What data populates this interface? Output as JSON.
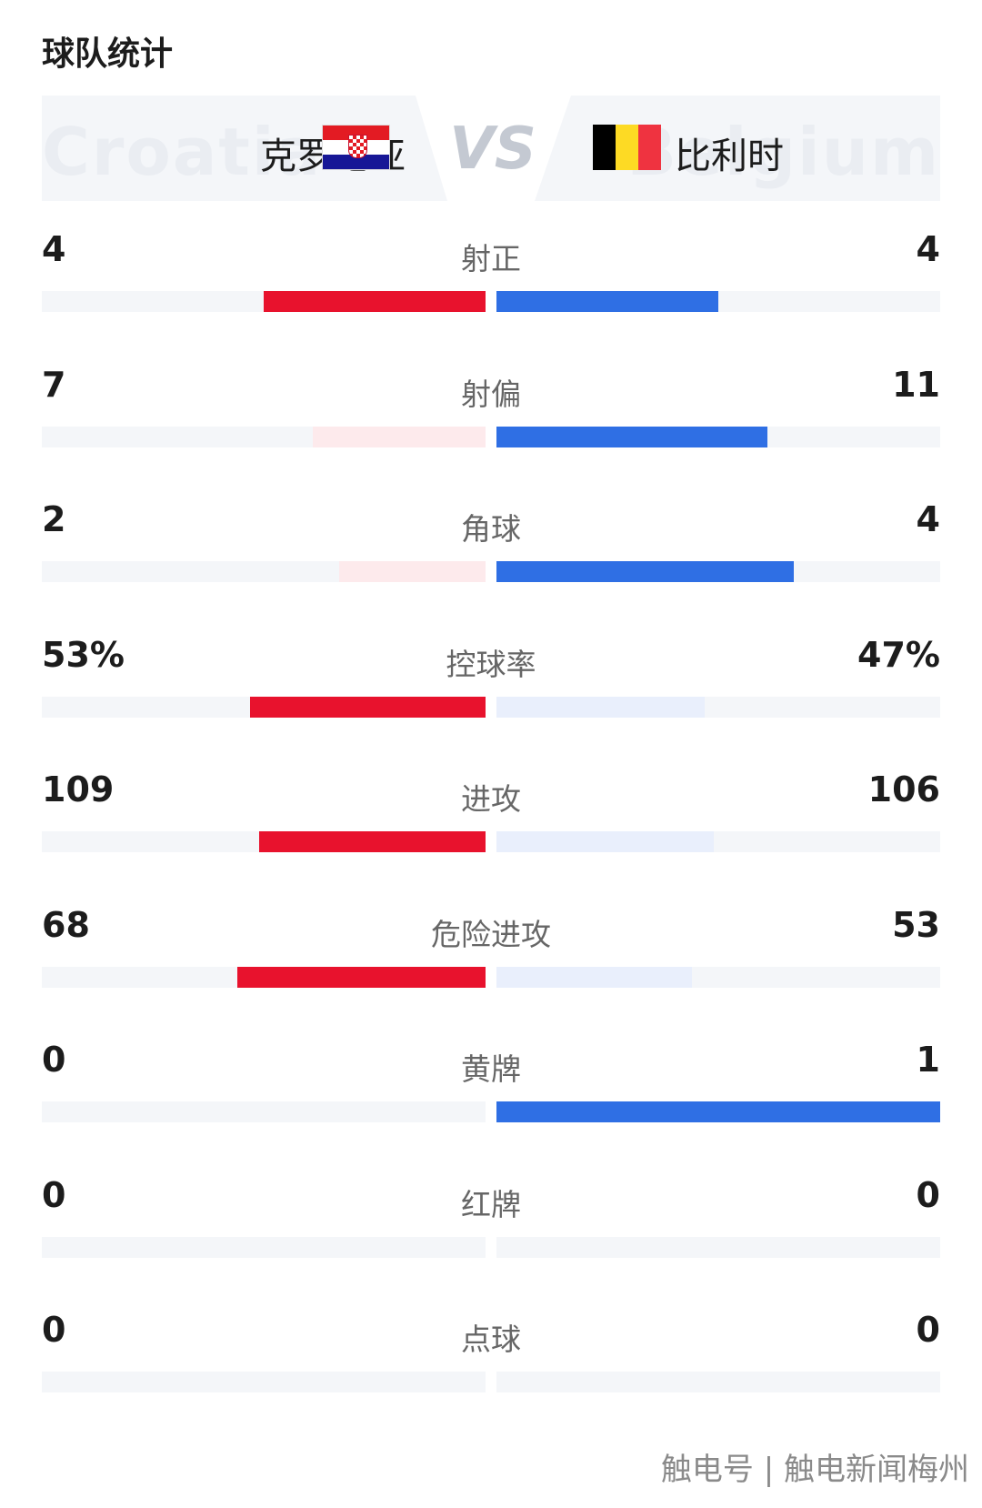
{
  "page_title": "球队统计",
  "home": {
    "name": "克罗地亚",
    "watermark": "Croatia",
    "flag": {
      "colors": [
        "#e31b23",
        "#ffffff",
        "#171796"
      ],
      "icon": "croatia-flag-icon"
    }
  },
  "away": {
    "name": "比利时",
    "watermark": "Belgium",
    "flag": {
      "colors": [
        "#000000",
        "#fdda24",
        "#ef3340"
      ],
      "icon": "belgium-flag-icon"
    }
  },
  "vs_label": "VS",
  "colors": {
    "home_win": "#e8122d",
    "home_lose": "#fdeaec",
    "away_win": "#2f6fe4",
    "away_lose": "#e9effc",
    "track": "#f4f6f9"
  },
  "stats": [
    {
      "label": "射正",
      "home": "4",
      "away": "4",
      "home_fill": 0.5,
      "away_fill": 0.5,
      "home_style": "win",
      "away_style": "win"
    },
    {
      "label": "射偏",
      "home": "7",
      "away": "11",
      "home_fill": 0.39,
      "away_fill": 0.61,
      "home_style": "lose",
      "away_style": "win"
    },
    {
      "label": "角球",
      "home": "2",
      "away": "4",
      "home_fill": 0.33,
      "away_fill": 0.67,
      "home_style": "lose",
      "away_style": "win"
    },
    {
      "label": "控球率",
      "home": "53%",
      "away": "47%",
      "home_fill": 0.53,
      "away_fill": 0.47,
      "home_style": "win",
      "away_style": "lose"
    },
    {
      "label": "进攻",
      "home": "109",
      "away": "106",
      "home_fill": 0.51,
      "away_fill": 0.49,
      "home_style": "win",
      "away_style": "lose"
    },
    {
      "label": "危险进攻",
      "home": "68",
      "away": "53",
      "home_fill": 0.56,
      "away_fill": 0.44,
      "home_style": "win",
      "away_style": "lose"
    },
    {
      "label": "黄牌",
      "home": "0",
      "away": "1",
      "home_fill": 0,
      "away_fill": 1,
      "home_style": "lose",
      "away_style": "win"
    },
    {
      "label": "红牌",
      "home": "0",
      "away": "0",
      "home_fill": 0,
      "away_fill": 0,
      "home_style": "lose",
      "away_style": "lose"
    },
    {
      "label": "点球",
      "home": "0",
      "away": "0",
      "home_fill": 0,
      "away_fill": 0,
      "home_style": "lose",
      "away_style": "lose"
    }
  ],
  "footer_text": "触电号 | 触电新闻梅州"
}
